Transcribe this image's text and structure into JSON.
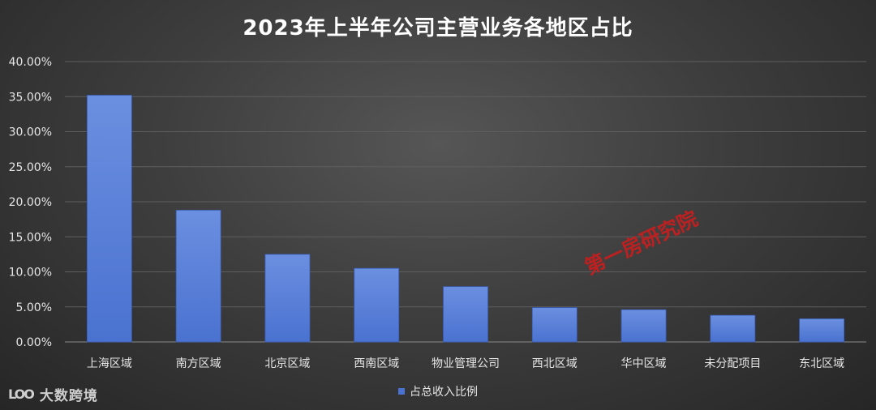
{
  "chart_data": {
    "type": "bar",
    "title": "2023年上半年公司主营业务各地区占比",
    "categories": [
      "上海区域",
      "南方区域",
      "北京区域",
      "西南区域",
      "物业管理公司",
      "西北区域",
      "华中区域",
      "未分配项目",
      "东北区域"
    ],
    "series": [
      {
        "name": "占总收入比例",
        "values": [
          35.2,
          18.8,
          12.5,
          10.5,
          7.9,
          4.9,
          4.6,
          3.8,
          3.3
        ]
      }
    ],
    "ylim": [
      0,
      40
    ],
    "yticks": [
      "0.00%",
      "5.00%",
      "10.00%",
      "15.00%",
      "20.00%",
      "25.00%",
      "30.00%",
      "35.00%",
      "40.00%"
    ],
    "ytick_values": [
      0,
      5,
      10,
      15,
      20,
      25,
      30,
      35,
      40
    ],
    "grid": true,
    "legend_position": "bottom",
    "bar_color": "#4a72d0",
    "gridline_color": "#5e5e5e"
  },
  "watermark_text": "第一房研究院",
  "logo": {
    "mark": "LOO",
    "text": "大数跨境"
  }
}
